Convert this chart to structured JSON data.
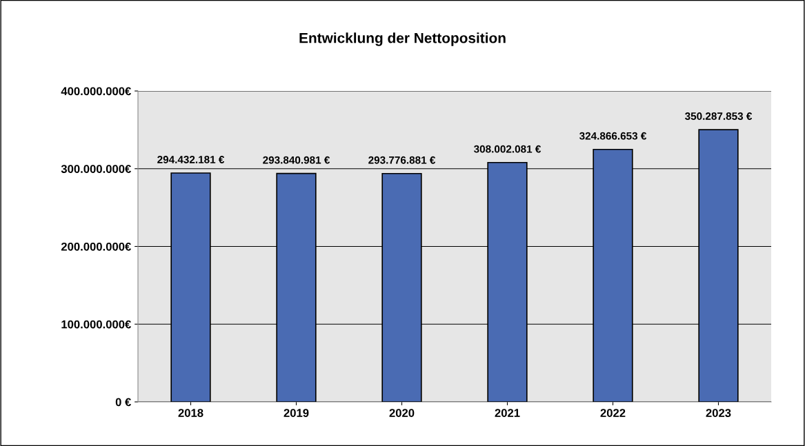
{
  "chart_data": {
    "type": "bar",
    "title": "Entwicklung der Nettoposition",
    "categories": [
      "2018",
      "2019",
      "2020",
      "2021",
      "2022",
      "2023"
    ],
    "values": [
      294432181,
      293840981,
      293776881,
      308002081,
      324866653,
      350287853
    ],
    "value_labels": [
      "294.432.181 €",
      "293.840.981 €",
      "293.776.881 €",
      "308.002.081 €",
      "324.866.653 €",
      "350.287.853 €"
    ],
    "color": "#4a6bb3",
    "ylim": [
      0,
      400000000
    ],
    "yticks": [
      {
        "value": 0,
        "label": "0 €"
      },
      {
        "value": 100000000,
        "label": "100.000.000€"
      },
      {
        "value": 200000000,
        "label": "200.000.000€"
      },
      {
        "value": 300000000,
        "label": "300.000.000€"
      },
      {
        "value": 400000000,
        "label": "400.000.000€"
      }
    ],
    "grid": "y",
    "legend": false
  }
}
